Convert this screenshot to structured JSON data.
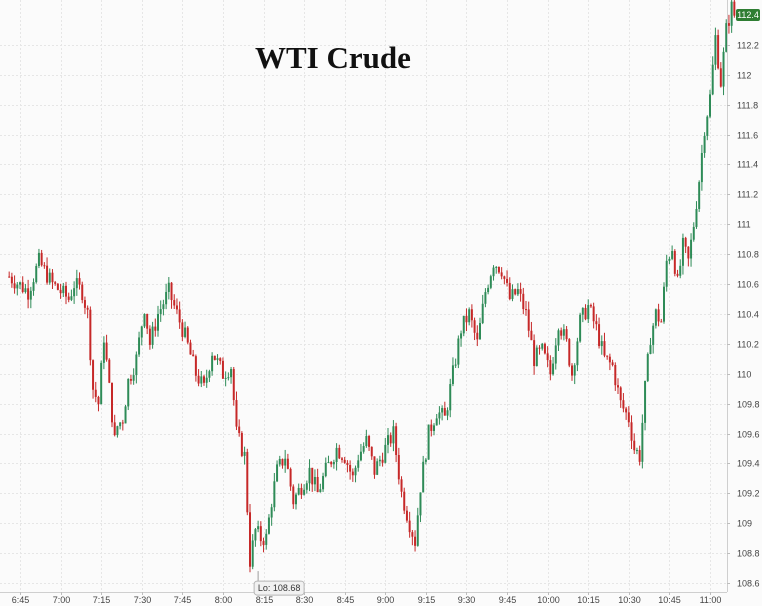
{
  "chart_data": {
    "type": "candlestick",
    "title": "WTI Crude",
    "xlabel": "",
    "ylabel": "",
    "ylim": [
      108.54,
      112.5
    ],
    "y_ticks": [
      108.6,
      108.8,
      109,
      109.2,
      109.4,
      109.6,
      109.8,
      110,
      110.2,
      110.4,
      110.6,
      110.8,
      111,
      111.2,
      111.4,
      111.6,
      111.8,
      112,
      112.2
    ],
    "y_tick_labels": [
      "108.6",
      "108.8",
      "109",
      "109.2",
      "109.4",
      "109.6",
      "109.8",
      "110",
      "110.2",
      "110.4",
      "110.6",
      "110.8",
      "111",
      "111.2",
      "111.4",
      "111.6",
      "111.8",
      "112",
      "112.2"
    ],
    "x_ticks": [
      "6:45",
      "7:00",
      "7:15",
      "7:30",
      "7:45",
      "8:00",
      "8:15",
      "8:30",
      "8:45",
      "9:00",
      "9:15",
      "9:30",
      "9:45",
      "10:00",
      "10:15",
      "10:30",
      "10:45",
      "11:00"
    ],
    "grid": true,
    "up_color": "#2e8b57",
    "down_color": "#c62828",
    "annotation": {
      "label": "Lo: 108.68",
      "price": 108.68,
      "time": "8:13"
    },
    "last_price_label": "112.4",
    "last_price": 112.4,
    "minutes_per_candle": 1,
    "start_time": "6:41",
    "anchors": [
      [
        "6:41",
        110.65
      ],
      [
        "6:48",
        110.55
      ],
      [
        "6:52",
        110.75
      ],
      [
        "6:57",
        110.6
      ],
      [
        "7:03",
        110.5
      ],
      [
        "7:05",
        110.6
      ],
      [
        "7:08",
        110.55
      ],
      [
        "7:10",
        110.4
      ],
      [
        "7:12",
        109.9
      ],
      [
        "7:14",
        109.8
      ],
      [
        "7:16",
        110.25
      ],
      [
        "7:18",
        109.9
      ],
      [
        "7:20",
        109.55
      ],
      [
        "7:21",
        109.65
      ],
      [
        "7:23",
        109.7
      ],
      [
        "7:25",
        109.95
      ],
      [
        "7:28",
        110.1
      ],
      [
        "7:31",
        110.45
      ],
      [
        "7:33",
        110.2
      ],
      [
        "7:36",
        110.4
      ],
      [
        "7:40",
        110.55
      ],
      [
        "7:43",
        110.4
      ],
      [
        "7:46",
        110.25
      ],
      [
        "7:50",
        110.0
      ],
      [
        "7:53",
        109.9
      ],
      [
        "7:56",
        110.15
      ],
      [
        "8:00",
        110.0
      ],
      [
        "8:03",
        110.05
      ],
      [
        "8:05",
        109.6
      ],
      [
        "8:08",
        109.45
      ],
      [
        "8:10",
        108.75
      ],
      [
        "8:12",
        108.95
      ],
      [
        "8:14",
        108.9
      ],
      [
        "8:16",
        108.9
      ],
      [
        "8:18",
        109.15
      ],
      [
        "8:20",
        109.35
      ],
      [
        "8:23",
        109.45
      ],
      [
        "8:26",
        109.15
      ],
      [
        "8:29",
        109.25
      ],
      [
        "8:32",
        109.35
      ],
      [
        "8:35",
        109.2
      ],
      [
        "8:38",
        109.35
      ],
      [
        "8:42",
        109.5
      ],
      [
        "8:45",
        109.45
      ],
      [
        "8:48",
        109.3
      ],
      [
        "8:50",
        109.45
      ],
      [
        "8:53",
        109.55
      ],
      [
        "8:56",
        109.35
      ],
      [
        "9:00",
        109.5
      ],
      [
        "9:03",
        109.6
      ],
      [
        "9:06",
        109.2
      ],
      [
        "9:09",
        109.0
      ],
      [
        "9:11",
        108.88
      ],
      [
        "9:13",
        109.25
      ],
      [
        "9:16",
        109.6
      ],
      [
        "9:19",
        109.75
      ],
      [
        "9:22",
        109.7
      ],
      [
        "9:25",
        110.0
      ],
      [
        "9:28",
        110.3
      ],
      [
        "9:31",
        110.4
      ],
      [
        "9:34",
        110.2
      ],
      [
        "9:37",
        110.55
      ],
      [
        "9:40",
        110.75
      ],
      [
        "9:43",
        110.7
      ],
      [
        "9:46",
        110.5
      ],
      [
        "9:49",
        110.55
      ],
      [
        "9:52",
        110.4
      ],
      [
        "9:55",
        110.1
      ],
      [
        "9:58",
        110.15
      ],
      [
        "10:01",
        110.0
      ],
      [
        "10:04",
        110.35
      ],
      [
        "10:07",
        110.2
      ],
      [
        "10:09",
        110.0
      ],
      [
        "10:12",
        110.35
      ],
      [
        "10:15",
        110.45
      ],
      [
        "10:18",
        110.3
      ],
      [
        "10:21",
        110.1
      ],
      [
        "10:24",
        110.05
      ],
      [
        "10:27",
        109.8
      ],
      [
        "10:30",
        109.7
      ],
      [
        "10:32",
        109.5
      ],
      [
        "10:34",
        109.45
      ],
      [
        "10:36",
        109.9
      ],
      [
        "10:38",
        110.25
      ],
      [
        "10:40",
        110.4
      ],
      [
        "10:42",
        110.35
      ],
      [
        "10:44",
        110.75
      ],
      [
        "10:46",
        110.85
      ],
      [
        "10:48",
        110.6
      ],
      [
        "10:50",
        110.85
      ],
      [
        "10:52",
        110.75
      ],
      [
        "10:54",
        111.0
      ],
      [
        "10:56",
        111.3
      ],
      [
        "10:58",
        111.65
      ],
      [
        "11:00",
        111.85
      ],
      [
        "11:02",
        112.25
      ],
      [
        "11:04",
        111.95
      ],
      [
        "11:06",
        112.3
      ],
      [
        "11:08",
        112.45
      ],
      [
        "11:09",
        112.4
      ]
    ]
  }
}
